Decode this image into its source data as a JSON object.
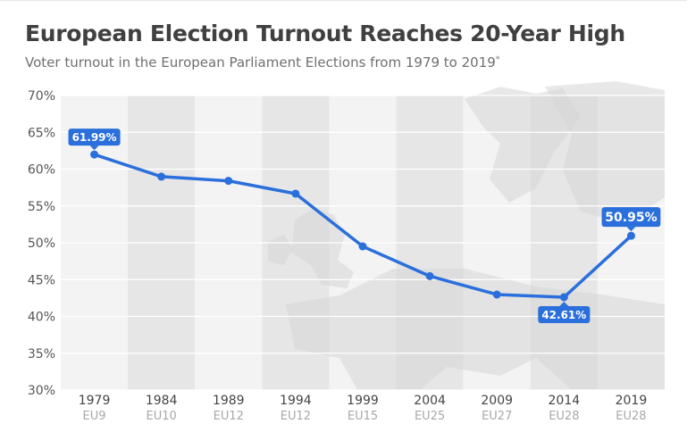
{
  "header": {
    "title": "European Election Turnout Reaches 20-Year High",
    "subtitle": "Voter turnout in the European Parliament Elections from 1979 to 2019",
    "subtitle_mark": "*"
  },
  "colors": {
    "line": "#2a6fdb",
    "label_bg": "#2a6fdb",
    "band_light": "#f3f3f3",
    "band_dark": "#e6e6e6",
    "grid": "#ffffff",
    "map": "#d6d6d6"
  },
  "chart_data": {
    "type": "line",
    "title": "European Election Turnout Reaches 20-Year High",
    "subtitle": "Voter turnout in the European Parliament Elections from 1979 to 2019",
    "categories": [
      "1979",
      "1984",
      "1989",
      "1994",
      "1999",
      "2004",
      "2009",
      "2014",
      "2019"
    ],
    "sub_categories": [
      "EU9",
      "EU10",
      "EU12",
      "EU12",
      "EU15",
      "EU25",
      "EU27",
      "EU28",
      "EU28"
    ],
    "series": [
      {
        "values": [
          61.99,
          58.98,
          58.41,
          56.67,
          49.51,
          45.47,
          42.97,
          42.61,
          50.95
        ]
      }
    ],
    "ylim": [
      30,
      70
    ],
    "y_ticks": [
      "30%",
      "35%",
      "40%",
      "45%",
      "50%",
      "55%",
      "60%",
      "65%",
      "70%"
    ],
    "data_labels": [
      {
        "index": 0,
        "text": "61.99%",
        "position": "above"
      },
      {
        "index": 7,
        "text": "42.61%",
        "position": "below"
      },
      {
        "index": 8,
        "text": "50.95%",
        "position": "above"
      }
    ],
    "grid": true,
    "legend": "none"
  }
}
